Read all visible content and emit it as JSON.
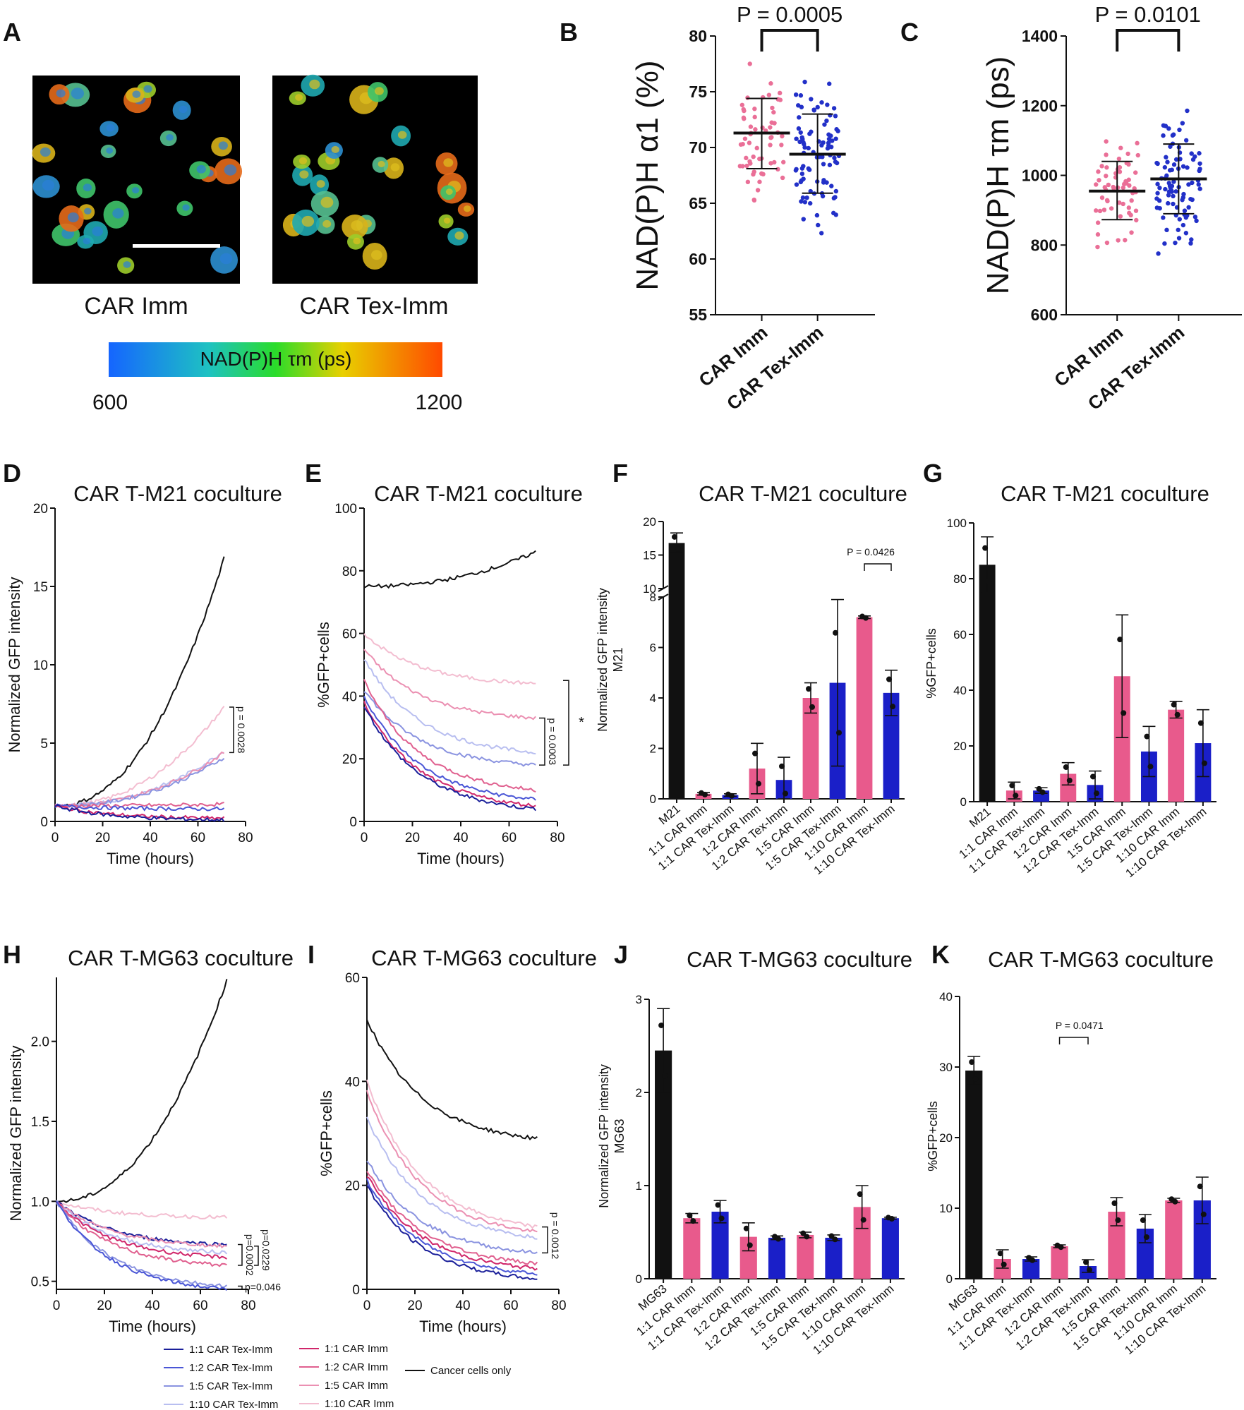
{
  "colors": {
    "imm": "#e85a8c",
    "tex": "#1a1fc8",
    "black": "#111111",
    "imm_dots": "#ea6f97",
    "tex_dots": "#2230c8"
  },
  "panel_a": {
    "letter": "A",
    "labels": [
      "CAR Imm",
      "CAR Tex-Imm"
    ],
    "colorbar": {
      "label": "NAD(P)H τm (ps)",
      "min": "600",
      "max": "1200"
    }
  },
  "chart_data": [
    {
      "id": "B",
      "type": "scatter",
      "title": "",
      "ylabel": "NAD(P)H α1 (%)",
      "ylim": [
        55,
        80
      ],
      "yticks": [
        "55",
        "60",
        "65",
        "70",
        "75",
        "80"
      ],
      "categories": [
        "CAR Imm",
        "CAR Tex-Imm"
      ],
      "means": [
        71.3,
        69.4
      ],
      "sd_low": [
        68.1,
        65.9
      ],
      "sd_high": [
        74.4,
        73.0
      ],
      "annotation": "P = 0.0005"
    },
    {
      "id": "C",
      "type": "scatter",
      "title": "",
      "ylabel": "NAD(P)H τm (ps)",
      "ylim": [
        600,
        1400
      ],
      "yticks": [
        "600",
        "800",
        "1000",
        "1200",
        "1400"
      ],
      "categories": [
        "CAR Imm",
        "CAR Tex-Imm"
      ],
      "means": [
        955,
        990
      ],
      "sd_low": [
        873,
        890
      ],
      "sd_high": [
        1040,
        1090
      ],
      "annotation": "P = 0.0101"
    },
    {
      "id": "D",
      "type": "line",
      "title": "CAR T-M21 coculture",
      "xlabel": "Time (hours)",
      "ylabel": "Normalized GFP intensity",
      "xlim": [
        0,
        80
      ],
      "ylim": [
        0,
        20
      ],
      "xticks": [
        "0",
        "20",
        "40",
        "60",
        "80"
      ],
      "yticks": [
        "0",
        "5",
        "10",
        "15",
        "20"
      ],
      "series": [
        {
          "name": "Cancer cells only",
          "end": 16.8
        },
        {
          "name": "1:10 CAR Imm",
          "end": 7.3
        },
        {
          "name": "1:10 CAR Tex-Imm",
          "end": 4.5
        },
        {
          "name": "1:5 CAR Imm",
          "end": 4.4
        },
        {
          "name": "1:5 CAR Tex-Imm",
          "end": 4.1
        },
        {
          "name": "1:2 CAR Imm",
          "end": 1.1
        },
        {
          "name": "1:2 CAR Tex-Imm",
          "end": 0.8
        },
        {
          "name": "1:1 CAR Imm",
          "end": 0.2
        },
        {
          "name": "1:1 CAR Tex-Imm",
          "end": 0.1
        }
      ],
      "annotation": "p = 0.0028"
    },
    {
      "id": "E",
      "type": "line",
      "title": "CAR T-M21 coculture",
      "xlabel": "Time (hours)",
      "ylabel": "%GFP+cells",
      "xlim": [
        0,
        80
      ],
      "ylim": [
        0,
        100
      ],
      "xticks": [
        "0",
        "20",
        "40",
        "60",
        "80"
      ],
      "yticks": [
        "0",
        "20",
        "40",
        "60",
        "80",
        "100"
      ],
      "series": [
        {
          "name": "Cancer cells only",
          "start": 75,
          "end": 86
        },
        {
          "name": "1:10 CAR Imm",
          "start": 60,
          "end": 44
        },
        {
          "name": "1:5 CAR Imm",
          "start": 55,
          "end": 33
        },
        {
          "name": "1:10 CAR Tex-Imm",
          "start": 52,
          "end": 22
        },
        {
          "name": "1:5 CAR Tex-Imm",
          "start": 42,
          "end": 18
        },
        {
          "name": "1:2 CAR Imm",
          "start": 45,
          "end": 10
        },
        {
          "name": "1:2 CAR Tex-Imm",
          "start": 40,
          "end": 7
        },
        {
          "name": "1:1 CAR Imm",
          "start": 38,
          "end": 5
        },
        {
          "name": "1:1 CAR Tex-Imm",
          "start": 37,
          "end": 4
        }
      ],
      "annotation": "p = 0.0003",
      "star": "*"
    },
    {
      "id": "F",
      "type": "bar",
      "title": "CAR T-M21 coculture",
      "ylabel": "Normalized GFP intensity",
      "ylabel2": "M21",
      "categories": [
        "M21",
        "1:1 CAR Imm",
        "1:1 CAR Tex-Imm",
        "1:2 CAR Imm",
        "1:2 CAR Tex-Imm",
        "1:5 CAR Imm",
        "1:5 CAR Tex-Imm",
        "1:10 CAR Imm",
        "1:10 CAR Tex-Imm"
      ],
      "values": [
        16.8,
        0.2,
        0.15,
        1.2,
        0.75,
        4.0,
        4.6,
        7.2,
        4.2
      ],
      "errors": [
        1.5,
        0.05,
        0.05,
        1.0,
        0.9,
        0.6,
        3.3,
        0.05,
        0.9
      ],
      "yticks_low": [
        "0",
        "2",
        "4",
        "6",
        "8"
      ],
      "yticks_high": [
        "10",
        "15",
        "20"
      ],
      "annotation": "P = 0.0426"
    },
    {
      "id": "G",
      "type": "bar",
      "title": "CAR T-M21 coculture",
      "ylabel": "%GFP+cells",
      "ylim": [
        0,
        100
      ],
      "categories": [
        "M21",
        "1:1 CAR Imm",
        "1:1 CAR Tex-Imm",
        "1:2 CAR Imm",
        "1:2 CAR Tex-Imm",
        "1:5 CAR Imm",
        "1:5 CAR Tex-Imm",
        "1:10 CAR Imm",
        "1:10 CAR Tex-Imm"
      ],
      "values": [
        85,
        4,
        4,
        10,
        6,
        45,
        18,
        33,
        21
      ],
      "errors": [
        10,
        3,
        1,
        4,
        5,
        22,
        9,
        3,
        12
      ],
      "yticks": [
        "0",
        "20",
        "40",
        "60",
        "80",
        "100"
      ]
    },
    {
      "id": "H",
      "type": "line",
      "title": "CAR T-MG63 coculture",
      "xlabel": "Time (hours)",
      "ylabel": "Normalized GFP intensity",
      "xlim": [
        0,
        80
      ],
      "ylim": [
        0.45,
        2.4
      ],
      "xticks": [
        "0",
        "20",
        "40",
        "60",
        "80"
      ],
      "yticks": [
        "0.5",
        "1.0",
        "1.5",
        "2.0"
      ],
      "series": [
        {
          "name": "Cancer cells only",
          "end": 2.38
        },
        {
          "name": "1:10 CAR Imm",
          "end": 0.9
        },
        {
          "name": "1:1 CAR Tex-Imm",
          "end": 0.73
        },
        {
          "name": "1:5 CAR Imm",
          "end": 0.72
        },
        {
          "name": "1:10 CAR Tex-Imm",
          "end": 0.68
        },
        {
          "name": "1:1 CAR Imm",
          "end": 0.65
        },
        {
          "name": "1:2 CAR Imm",
          "end": 0.6
        },
        {
          "name": "1:5 CAR Tex-Imm",
          "end": 0.47
        },
        {
          "name": "1:2 CAR Tex-Imm",
          "end": 0.45
        }
      ],
      "annotations": [
        "p=0.0229",
        "p=0.0002",
        "p=0.046"
      ]
    },
    {
      "id": "I",
      "type": "line",
      "title": "CAR T-MG63 coculture",
      "xlabel": "Time (hours)",
      "ylabel": "%GFP+cells",
      "xlim": [
        0,
        80
      ],
      "ylim": [
        0,
        60
      ],
      "xticks": [
        "0",
        "20",
        "40",
        "60",
        "80"
      ],
      "yticks": [
        "0",
        "20",
        "40",
        "60"
      ],
      "series": [
        {
          "name": "Cancer cells only",
          "start": 52,
          "end": 29
        },
        {
          "name": "1:10 CAR Imm",
          "start": 40,
          "end": 12
        },
        {
          "name": "1:5 CAR Imm",
          "start": 38,
          "end": 11
        },
        {
          "name": "1:10 CAR Tex-Imm",
          "start": 33,
          "end": 10
        },
        {
          "name": "1:5 CAR Tex-Imm",
          "start": 25,
          "end": 7
        },
        {
          "name": "1:2 CAR Imm",
          "start": 23,
          "end": 5
        },
        {
          "name": "1:1 CAR Imm",
          "start": 22,
          "end": 4
        },
        {
          "name": "1:2 CAR Tex-Imm",
          "start": 21,
          "end": 3
        },
        {
          "name": "1:1 CAR Tex-Imm",
          "start": 20,
          "end": 2
        }
      ],
      "annotation": "p = 0.0012"
    },
    {
      "id": "J",
      "type": "bar",
      "title": "CAR T-MG63 coculture",
      "ylabel": "Normalized GFP intensity",
      "ylabel2": "MG63",
      "ylim": [
        0,
        3
      ],
      "categories": [
        "MG63",
        "1:1 CAR Imm",
        "1:1 CAR Tex-Imm",
        "1:2 CAR Imm",
        "1:2 CAR Tex-Imm",
        "1:5 CAR Imm",
        "1:5 CAR Tex-Imm",
        "1:10 CAR Imm",
        "1:10 CAR Tex-Imm"
      ],
      "values": [
        2.45,
        0.65,
        0.72,
        0.45,
        0.44,
        0.47,
        0.44,
        0.77,
        0.65
      ],
      "errors": [
        0.45,
        0.05,
        0.12,
        0.15,
        0.02,
        0.03,
        0.03,
        0.23,
        0.01
      ],
      "yticks": [
        "0",
        "1",
        "2",
        "3"
      ]
    },
    {
      "id": "K",
      "type": "bar",
      "title": "CAR T-MG63 coculture",
      "ylabel": "%GFP+cells",
      "ylim": [
        0,
        40
      ],
      "categories": [
        "MG63",
        "1:1 CAR Imm",
        "1:1 CAR Tex-Imm",
        "1:2 CAR Imm",
        "1:2 CAR Tex-Imm",
        "1:5 CAR Imm",
        "1:5 CAR Tex-Imm",
        "1:10 CAR Imm",
        "1:10 CAR Tex-Imm"
      ],
      "values": [
        29.5,
        2.8,
        2.8,
        4.6,
        1.8,
        9.5,
        7.1,
        11.1,
        11.1
      ],
      "errors": [
        2,
        1.3,
        0.3,
        0.2,
        0.9,
        2,
        2,
        0.3,
        3.3
      ],
      "yticks": [
        "0",
        "10",
        "20",
        "30",
        "40"
      ],
      "annotation": "P = 0.0471"
    }
  ],
  "legend": {
    "items": [
      {
        "label": "1:1 CAR Tex-Imm",
        "color": "#1a1f9a"
      },
      {
        "label": "1:2 CAR Tex-Imm",
        "color": "#4a56d6"
      },
      {
        "label": "1:5 CAR Tex-Imm",
        "color": "#8a93e0"
      },
      {
        "label": "1:10 CAR Tex-Imm",
        "color": "#b8bef0"
      },
      {
        "label": "1:1 CAR Imm",
        "color": "#d0266a"
      },
      {
        "label": "1:2 CAR Imm",
        "color": "#e0608f"
      },
      {
        "label": "1:5 CAR Imm",
        "color": "#eb90b2"
      },
      {
        "label": "1:10 CAR Imm",
        "color": "#f3bdd0"
      },
      {
        "label": "Cancer cells only",
        "color": "#111111"
      }
    ]
  }
}
